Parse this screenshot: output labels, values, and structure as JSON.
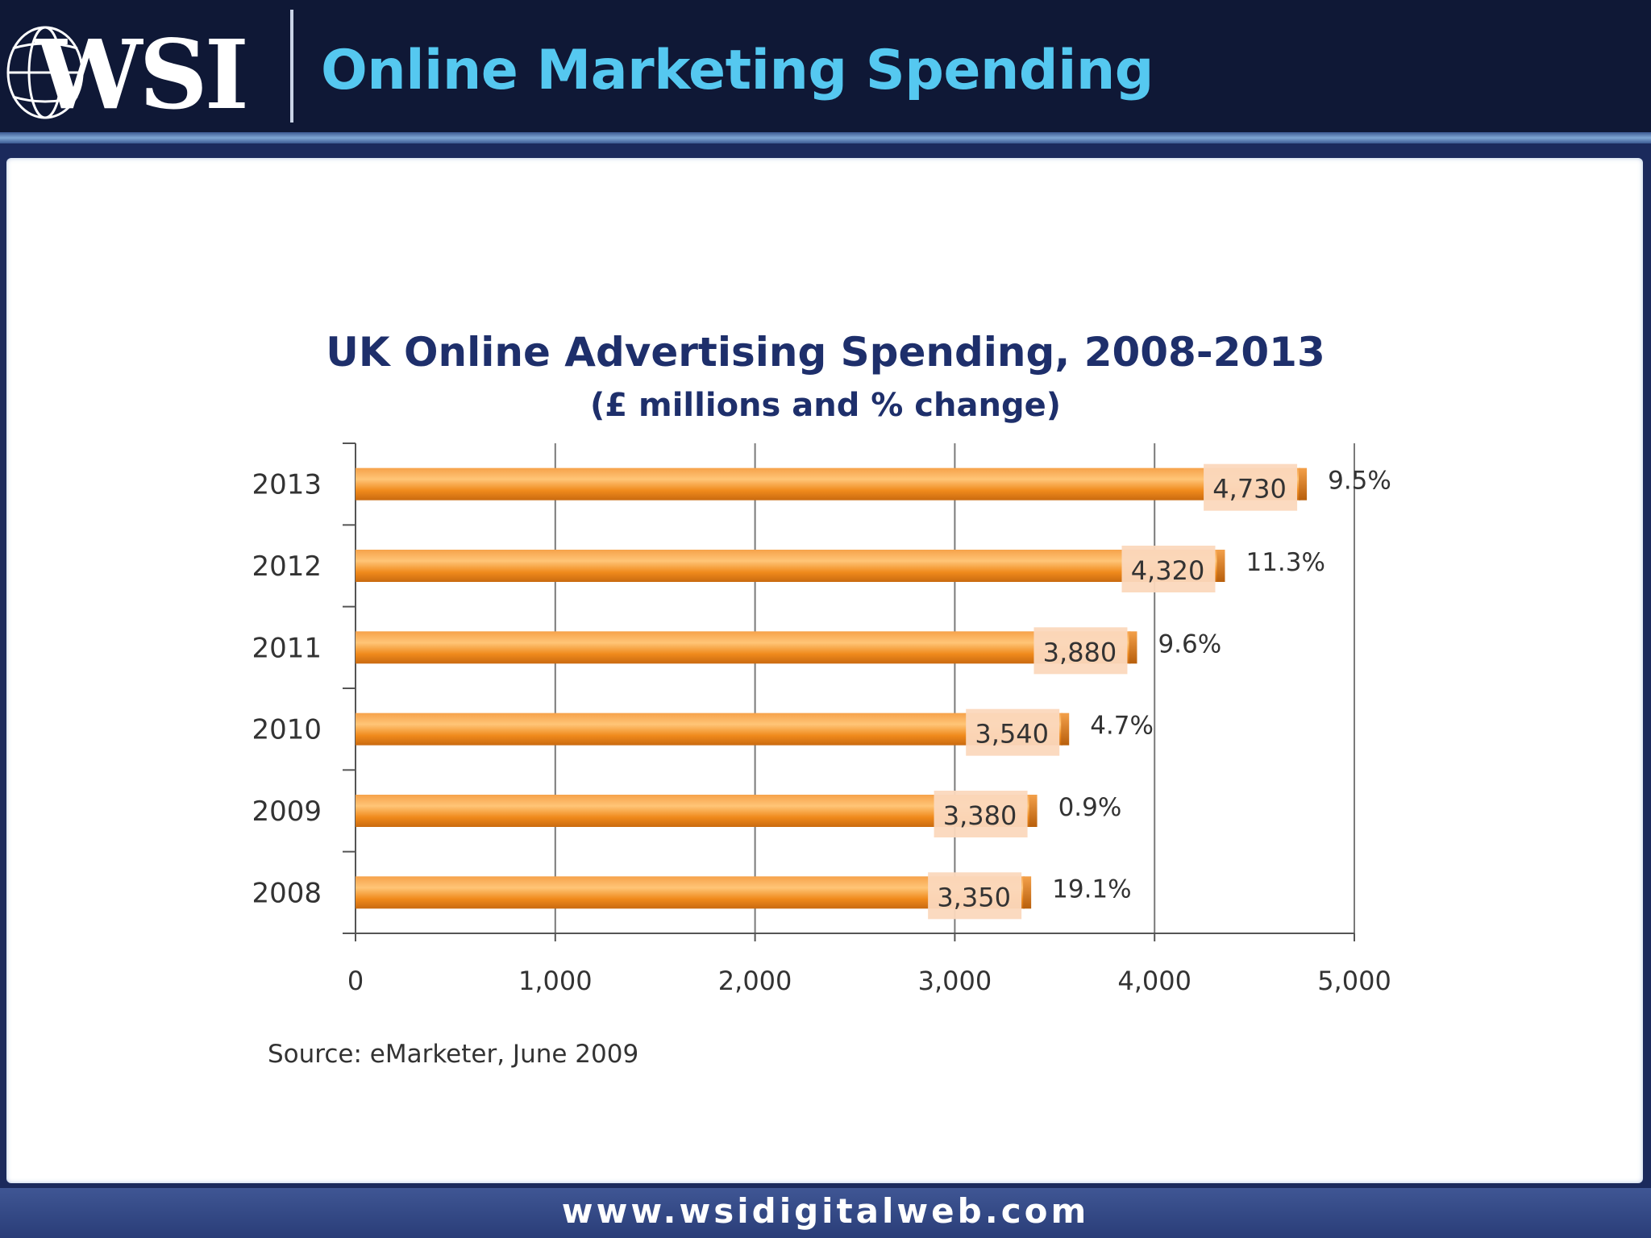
{
  "header": {
    "logo_text": "WSI",
    "title": "Online Marketing Spending"
  },
  "footer": {
    "url": "www.wsidigitalweb.com"
  },
  "colors": {
    "bar": "#f08a1c",
    "bar_highlight": "#ffc577",
    "value_label_bg": "#fbd8bd",
    "title_text": "#1e2f6b",
    "header_title": "#55c8f0"
  },
  "chart_data": {
    "type": "bar",
    "orientation": "horizontal",
    "title": "UK Online Advertising Spending, 2008-2013",
    "subtitle": "(£ millions and % change)",
    "categories": [
      "2013",
      "2012",
      "2011",
      "2010",
      "2009",
      "2008"
    ],
    "values": [
      4730,
      4320,
      3880,
      3540,
      3380,
      3350
    ],
    "value_labels": [
      "4,730",
      "4,320",
      "3,880",
      "3,540",
      "3,380",
      "3,350"
    ],
    "pct_change_labels": [
      "9.5%",
      "11.3%",
      "9.6%",
      "4.7%",
      "0.9%",
      "19.1%"
    ],
    "xlim": [
      0,
      5000
    ],
    "x_ticks": [
      0,
      1000,
      2000,
      3000,
      4000,
      5000
    ],
    "x_tick_labels": [
      "0",
      "1,000",
      "2,000",
      "3,000",
      "4,000",
      "5,000"
    ],
    "grid": "vertical",
    "source": "Source: eMarketer, June 2009"
  }
}
